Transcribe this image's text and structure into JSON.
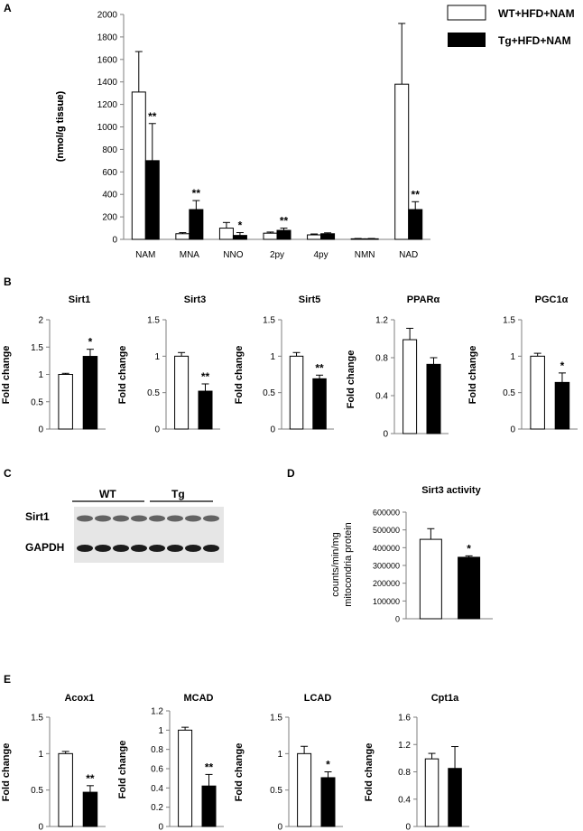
{
  "colors": {
    "wt": "#ffffff",
    "tg": "#000000",
    "axis": "#7f7f7f",
    "blot_band": "#2b2b2b",
    "blot_bg": "#d9d9d9"
  },
  "legend": {
    "items": [
      "WT+HFD+NAM",
      "Tg+HFD+NAM"
    ]
  },
  "panel_letters": [
    "A",
    "B",
    "C",
    "D",
    "E"
  ],
  "blot": {
    "groups": [
      "WT",
      "Tg"
    ],
    "rows": [
      "Sirt1",
      "GAPDH"
    ],
    "lanes_per_group": 4,
    "note": "Sirt1 band intensity appears similar or slightly higher in Tg lanes; GAPDH uniform"
  },
  "chart_data": [
    {
      "id": "A",
      "type": "bar",
      "ylabel": "(nmol/g tissue)",
      "ylim": [
        0,
        2000
      ],
      "yticks": [
        0,
        200,
        400,
        600,
        800,
        1000,
        1200,
        1400,
        1600,
        1800,
        2000
      ],
      "categories": [
        "NAM",
        "MNA",
        "NNO",
        "2py",
        "4py",
        "NMN",
        "NAD"
      ],
      "series": [
        {
          "name": "WT+HFD+NAM",
          "values": [
            1310,
            50,
            100,
            55,
            40,
            5,
            1380
          ],
          "errors": [
            360,
            10,
            50,
            10,
            8,
            3,
            540
          ]
        },
        {
          "name": "Tg+HFD+NAM",
          "values": [
            700,
            265,
            35,
            80,
            50,
            5,
            265
          ],
          "errors": [
            330,
            80,
            25,
            20,
            8,
            3,
            70
          ]
        }
      ],
      "significance": [
        "**",
        "**",
        "*",
        "**",
        "",
        "",
        "**"
      ]
    },
    {
      "id": "B1",
      "type": "bar",
      "title": "Sirt1",
      "ylabel": "Fold change",
      "ylim": [
        0,
        2
      ],
      "yticks": [
        "0",
        "0.5",
        "1",
        "1.5",
        "2"
      ],
      "values": [
        1.0,
        1.33
      ],
      "errors": [
        0.02,
        0.13
      ],
      "significance": "*"
    },
    {
      "id": "B2",
      "type": "bar",
      "title": "Sirt3",
      "ylabel": "Fold change",
      "ylim": [
        0,
        1.5
      ],
      "yticks": [
        "0",
        "0.5",
        "1",
        "1.5"
      ],
      "values": [
        1.0,
        0.52
      ],
      "errors": [
        0.05,
        0.1
      ],
      "significance": "**"
    },
    {
      "id": "B3",
      "type": "bar",
      "title": "Sirt5",
      "ylabel": "Fold change",
      "ylim": [
        0,
        1.5
      ],
      "yticks": [
        "0",
        "0.5",
        "1",
        "1.5"
      ],
      "values": [
        1.0,
        0.69
      ],
      "errors": [
        0.05,
        0.05
      ],
      "significance": "**"
    },
    {
      "id": "B4",
      "type": "bar",
      "title": "PPARα",
      "ylabel": "Fold change",
      "ylim": [
        0,
        1.2
      ],
      "yticks": [
        "0",
        "0.4",
        "0.8",
        "1.2"
      ],
      "values": [
        0.99,
        0.73
      ],
      "errors": [
        0.12,
        0.07
      ],
      "significance": ""
    },
    {
      "id": "B5",
      "type": "bar",
      "title": "PGC1α",
      "ylabel": "Fold change",
      "ylim": [
        0,
        1.5
      ],
      "yticks": [
        "0",
        "0.5",
        "1",
        "1.5"
      ],
      "values": [
        1.0,
        0.64
      ],
      "errors": [
        0.04,
        0.13
      ],
      "significance": "*"
    },
    {
      "id": "D",
      "type": "bar",
      "title": "Sirt3  activity",
      "ylabel": "counts/min/mg",
      "ylabel2": "mitocondria  protein",
      "ylim": [
        0,
        600000
      ],
      "yticks": [
        "0",
        "100000",
        "200000",
        "300000",
        "400000",
        "500000",
        "600000"
      ],
      "values": [
        447000,
        346000
      ],
      "errors": [
        60000,
        8000
      ],
      "significance": "*"
    },
    {
      "id": "E1",
      "type": "bar",
      "title": "Acox1",
      "ylabel": "Fold change",
      "ylim": [
        0,
        1.5
      ],
      "yticks": [
        "0",
        "0.5",
        "1",
        "1.5"
      ],
      "values": [
        1.0,
        0.47
      ],
      "errors": [
        0.03,
        0.09
      ],
      "significance": "**"
    },
    {
      "id": "E2",
      "type": "bar",
      "title": "MCAD",
      "ylabel": "Fold change",
      "ylim": [
        0,
        1.2
      ],
      "yticks": [
        "0",
        "0.2",
        "0.4",
        "0.6",
        "0.8",
        "1",
        "1.2"
      ],
      "values": [
        1.0,
        0.42
      ],
      "errors": [
        0.03,
        0.12
      ],
      "significance": "**"
    },
    {
      "id": "E3",
      "type": "bar",
      "title": "LCAD",
      "ylabel": "Fold change",
      "ylim": [
        0,
        1.5
      ],
      "yticks": [
        "0",
        "0.5",
        "1",
        "1.5"
      ],
      "values": [
        1.0,
        0.67
      ],
      "errors": [
        0.1,
        0.08
      ],
      "significance": "*"
    },
    {
      "id": "E4",
      "type": "bar",
      "title": "Cpt1a",
      "ylabel": "Fold change",
      "ylim": [
        0,
        1.6
      ],
      "yticks": [
        "0",
        "0.4",
        "0.8",
        "1.2",
        "1.6"
      ],
      "values": [
        0.99,
        0.85
      ],
      "errors": [
        0.08,
        0.32
      ],
      "significance": ""
    }
  ]
}
